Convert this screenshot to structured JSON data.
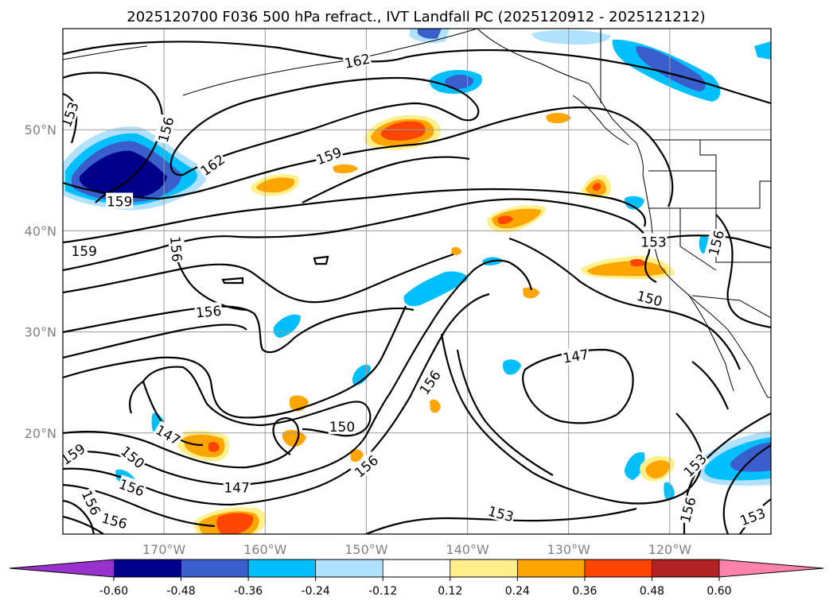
{
  "title": "2025120700 F036 500 hPa refract., IVT Landfall PC (2025120912 - 2025121212)",
  "map": {
    "lon_range": [
      -180,
      -110
    ],
    "lat_range": [
      10,
      60
    ],
    "lon_ticks": [
      {
        "lon": -170,
        "label": "170°W"
      },
      {
        "lon": -160,
        "label": "160°W"
      },
      {
        "lon": -150,
        "label": "150°W"
      },
      {
        "lon": -140,
        "label": "140°W"
      },
      {
        "lon": -130,
        "label": "130°W"
      },
      {
        "lon": -120,
        "label": "120°W"
      }
    ],
    "lat_ticks": [
      {
        "lat": 20,
        "label": "20°N"
      },
      {
        "lat": 30,
        "label": "30°N"
      },
      {
        "lat": 40,
        "label": "40°N"
      },
      {
        "lat": 50,
        "label": "50°N"
      }
    ],
    "grid": true
  },
  "colorbar": {
    "colors": [
      "#9932cc",
      "#00008b",
      "#3a5fcd",
      "#00bfff",
      "#b0e2ff",
      "#ffffff",
      "#fff08c",
      "#ffa500",
      "#ff4500",
      "#b22222",
      "#ff82ab"
    ],
    "boundaries": [
      "-0.60",
      "-0.48",
      "-0.36",
      "-0.24",
      "-0.12",
      "0.12",
      "0.24",
      "0.36",
      "0.48",
      "0.60"
    ],
    "extend": "both",
    "orientation": "horizontal"
  },
  "contour_labels": [
    {
      "text": "162",
      "lon": -150.9,
      "lat": 56.8,
      "rot": -12
    },
    {
      "text": "162",
      "lon": -165.2,
      "lat": 46.5,
      "rot": -35
    },
    {
      "text": "156",
      "lon": -169.8,
      "lat": 50.0,
      "rot": -75
    },
    {
      "text": "153",
      "lon": -179.3,
      "lat": 51.5,
      "rot": -70
    },
    {
      "text": "159",
      "lon": -174.4,
      "lat": 42.9,
      "rot": 0
    },
    {
      "text": "159",
      "lon": -153.7,
      "lat": 47.4,
      "rot": -20
    },
    {
      "text": "159",
      "lon": -177.9,
      "lat": 38.0,
      "rot": 0
    },
    {
      "text": "156",
      "lon": -168.8,
      "lat": 38.2,
      "rot": 85
    },
    {
      "text": "156",
      "lon": -165.6,
      "lat": 32.0,
      "rot": -5
    },
    {
      "text": "153",
      "lon": -121.6,
      "lat": 38.9,
      "rot": 0
    },
    {
      "text": "156",
      "lon": -115.4,
      "lat": 38.8,
      "rot": -75
    },
    {
      "text": "150",
      "lon": -122.0,
      "lat": 33.3,
      "rot": 15
    },
    {
      "text": "147",
      "lon": -129.3,
      "lat": 27.6,
      "rot": -10
    },
    {
      "text": "156",
      "lon": -143.7,
      "lat": 25.0,
      "rot": -55
    },
    {
      "text": "150",
      "lon": -152.4,
      "lat": 20.6,
      "rot": 0
    },
    {
      "text": "147",
      "lon": -169.6,
      "lat": 19.8,
      "rot": 30
    },
    {
      "text": "150",
      "lon": -173.1,
      "lat": 17.6,
      "rot": 40
    },
    {
      "text": "159",
      "lon": -179.0,
      "lat": 17.9,
      "rot": -35
    },
    {
      "text": "156",
      "lon": -173.2,
      "lat": 14.6,
      "rot": 20
    },
    {
      "text": "147",
      "lon": -162.8,
      "lat": 14.6,
      "rot": 0
    },
    {
      "text": "156",
      "lon": -150.0,
      "lat": 16.7,
      "rot": -40
    },
    {
      "text": "156",
      "lon": -177.2,
      "lat": 13.1,
      "rot": 65
    },
    {
      "text": "156",
      "lon": -174.9,
      "lat": 11.3,
      "rot": 15
    },
    {
      "text": "153",
      "lon": -136.7,
      "lat": 12.0,
      "rot": 15
    },
    {
      "text": "153",
      "lon": -117.5,
      "lat": 16.8,
      "rot": -45
    },
    {
      "text": "156",
      "lon": -118.2,
      "lat": 12.4,
      "rot": -75
    },
    {
      "text": "153",
      "lon": -111.8,
      "lat": 11.7,
      "rot": -20
    }
  ]
}
